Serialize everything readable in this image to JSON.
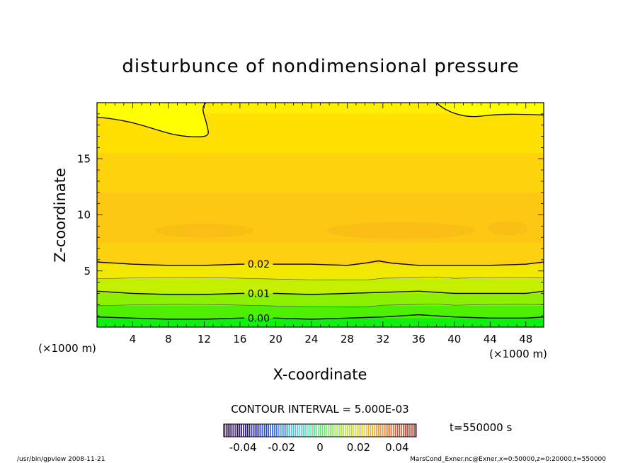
{
  "chart_data": {
    "type": "heatmap",
    "title": "disturbunce of nondimensional pressure",
    "xlabel": "X-coordinate",
    "ylabel": "Z-coordinate",
    "x_unit": "(×1000 m)",
    "z_unit": "(×1000 m)",
    "xlim": [
      0,
      50
    ],
    "ylim": [
      0,
      20
    ],
    "x_ticks": [
      "4",
      "8",
      "12",
      "16",
      "20",
      "24",
      "28",
      "32",
      "36",
      "40",
      "44",
      "48"
    ],
    "y_ticks": [
      "5",
      "10",
      "15"
    ],
    "contour_interval_label": "CONTOUR INTERVAL = 5.000E-03",
    "time_label": "t=550000 s",
    "colorbar": {
      "range": [
        -0.05,
        0.05
      ],
      "tick_labels": [
        "-0.04",
        "-0.02",
        "0",
        "0.02",
        "0.04"
      ],
      "tick_values": [
        -0.04,
        -0.02,
        0,
        0.02,
        0.04
      ]
    },
    "labeled_contours": [
      {
        "level": "0.02",
        "label_x": 16.5,
        "z_profile": [
          [
            0,
            5.8
          ],
          [
            4,
            5.6
          ],
          [
            8,
            5.5
          ],
          [
            12,
            5.5
          ],
          [
            16,
            5.6
          ],
          [
            20,
            5.6
          ],
          [
            24,
            5.6
          ],
          [
            28,
            5.5
          ],
          [
            30,
            5.7
          ],
          [
            31.5,
            5.9
          ],
          [
            33,
            5.7
          ],
          [
            36,
            5.5
          ],
          [
            40,
            5.5
          ],
          [
            44,
            5.5
          ],
          [
            48,
            5.6
          ],
          [
            50,
            5.8
          ]
        ]
      },
      {
        "level": "0.01",
        "label_x": 16.5,
        "z_profile": [
          [
            0,
            3.2
          ],
          [
            4,
            3.0
          ],
          [
            8,
            2.9
          ],
          [
            12,
            2.9
          ],
          [
            16,
            3.0
          ],
          [
            20,
            3.0
          ],
          [
            24,
            2.9
          ],
          [
            28,
            3.0
          ],
          [
            32,
            3.1
          ],
          [
            36,
            3.2
          ],
          [
            40,
            3.0
          ],
          [
            44,
            3.0
          ],
          [
            48,
            3.0
          ],
          [
            50,
            3.2
          ]
        ]
      },
      {
        "level": "0.00",
        "label_x": 16.5,
        "z_profile": [
          [
            0,
            0.9
          ],
          [
            4,
            0.8
          ],
          [
            8,
            0.7
          ],
          [
            12,
            0.7
          ],
          [
            16,
            0.8
          ],
          [
            20,
            0.8
          ],
          [
            24,
            0.7
          ],
          [
            28,
            0.8
          ],
          [
            32,
            0.9
          ],
          [
            36,
            1.1
          ],
          [
            40,
            0.9
          ],
          [
            44,
            0.8
          ],
          [
            48,
            0.8
          ],
          [
            50,
            0.9
          ]
        ]
      }
    ],
    "bands": [
      {
        "z": [
          19.0,
          20
        ],
        "color": "#ffee00"
      },
      {
        "z": [
          15.5,
          19.0
        ],
        "color": "#ffe000"
      },
      {
        "z": [
          12.0,
          15.5
        ],
        "color": "#fdd40c"
      },
      {
        "z": [
          7.5,
          12.0
        ],
        "color": "#fcc814"
      },
      {
        "z": [
          5.6,
          7.5
        ],
        "color": "#fdd010"
      },
      {
        "z": [
          4.3,
          5.6
        ],
        "color": "#f3e800"
      },
      {
        "z": [
          3.0,
          4.3
        ],
        "color": "#c4f000"
      },
      {
        "z": [
          1.9,
          3.0
        ],
        "color": "#8cf000"
      },
      {
        "z": [
          0.8,
          1.9
        ],
        "color": "#4cf000"
      },
      {
        "z": [
          0,
          0.8
        ],
        "color": "#10f010"
      }
    ]
  },
  "footer": {
    "left": "/usr/bin/gpview  2008-11-21",
    "right": "MarsCond_Exner.nc@Exner,x=0:50000,z=0:20000,t=550000"
  }
}
